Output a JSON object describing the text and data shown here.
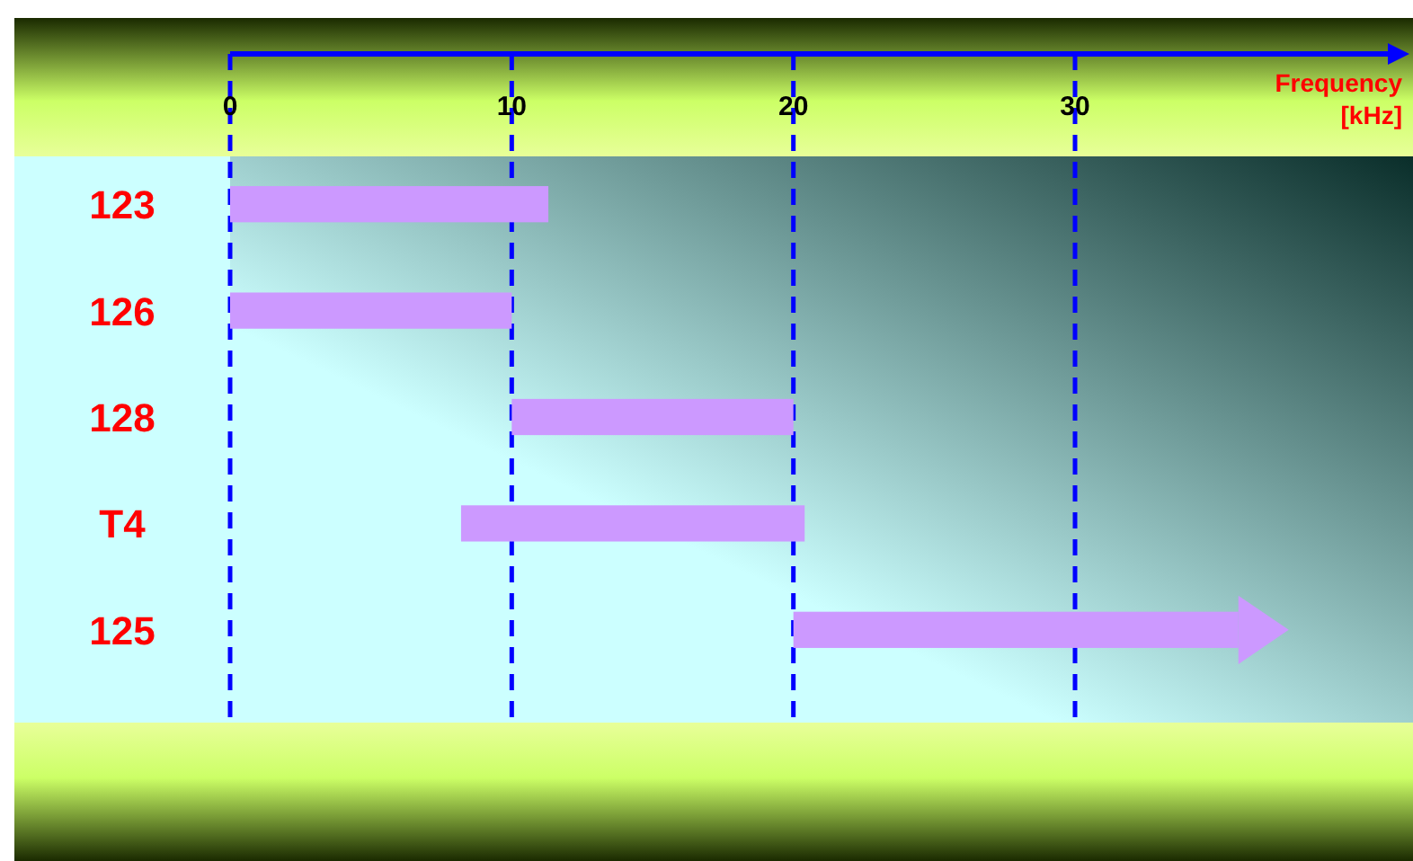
{
  "chart_data": {
    "type": "bar",
    "orientation": "horizontal",
    "categories": [
      "123",
      "126",
      "128",
      "T4",
      "125"
    ],
    "base": [
      0,
      0,
      10,
      8.2,
      20
    ],
    "values": [
      11.3,
      10,
      10,
      12.2,
      15.8
    ],
    "color": "#cc99ff",
    "xlim": [
      0,
      42
    ],
    "xticks": [
      0,
      10,
      20,
      30
    ],
    "xlabel": "Frequency [kHz]",
    "grid": "x"
  }
}
